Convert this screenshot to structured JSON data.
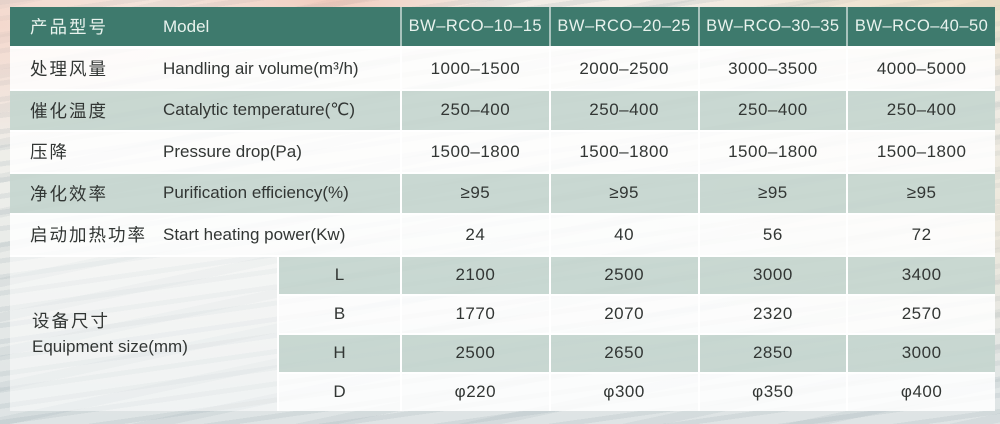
{
  "colors": {
    "header_bg": "#3E7A6D",
    "header_text": "#E8F2ED",
    "row_green": "#C5D6CF",
    "row_white": "#FFFFFF",
    "body_text": "#323634"
  },
  "table": {
    "header": {
      "label_zh": "产品型号",
      "label_en": "Model",
      "models": [
        "BW–RCO–10–15",
        "BW–RCO–20–25",
        "BW–RCO–30–35",
        "BW–RCO–40–50"
      ]
    },
    "rows": [
      {
        "zh": "处理风量",
        "en": "Handling air volume(m³/h)",
        "values": [
          "1000–1500",
          "2000–2500",
          "3000–3500",
          "4000–5000"
        ]
      },
      {
        "zh": "催化温度",
        "en": "Catalytic temperature(℃)",
        "values": [
          "250–400",
          "250–400",
          "250–400",
          "250–400"
        ]
      },
      {
        "zh": "压降",
        "en": "Pressure drop(Pa)",
        "values": [
          "1500–1800",
          "1500–1800",
          "1500–1800",
          "1500–1800"
        ]
      },
      {
        "zh": "净化效率",
        "en": "Purification efficiency(%)",
        "values": [
          "≥95",
          "≥95",
          "≥95",
          "≥95"
        ]
      },
      {
        "zh": "启动加热功率",
        "en": "Start heating power(Kw)",
        "values": [
          "24",
          "40",
          "56",
          "72"
        ]
      }
    ],
    "equipment": {
      "zh": "设备尺寸",
      "en": "Equipment size(mm)",
      "subrows": [
        {
          "label": "L",
          "values": [
            "2100",
            "2500",
            "3000",
            "3400"
          ]
        },
        {
          "label": "B",
          "values": [
            "1770",
            "2070",
            "2320",
            "2570"
          ]
        },
        {
          "label": "H",
          "values": [
            "2500",
            "2650",
            "2850",
            "3000"
          ]
        },
        {
          "label": "D",
          "values": [
            "φ220",
            "φ300",
            "φ350",
            "φ400"
          ]
        }
      ]
    }
  }
}
